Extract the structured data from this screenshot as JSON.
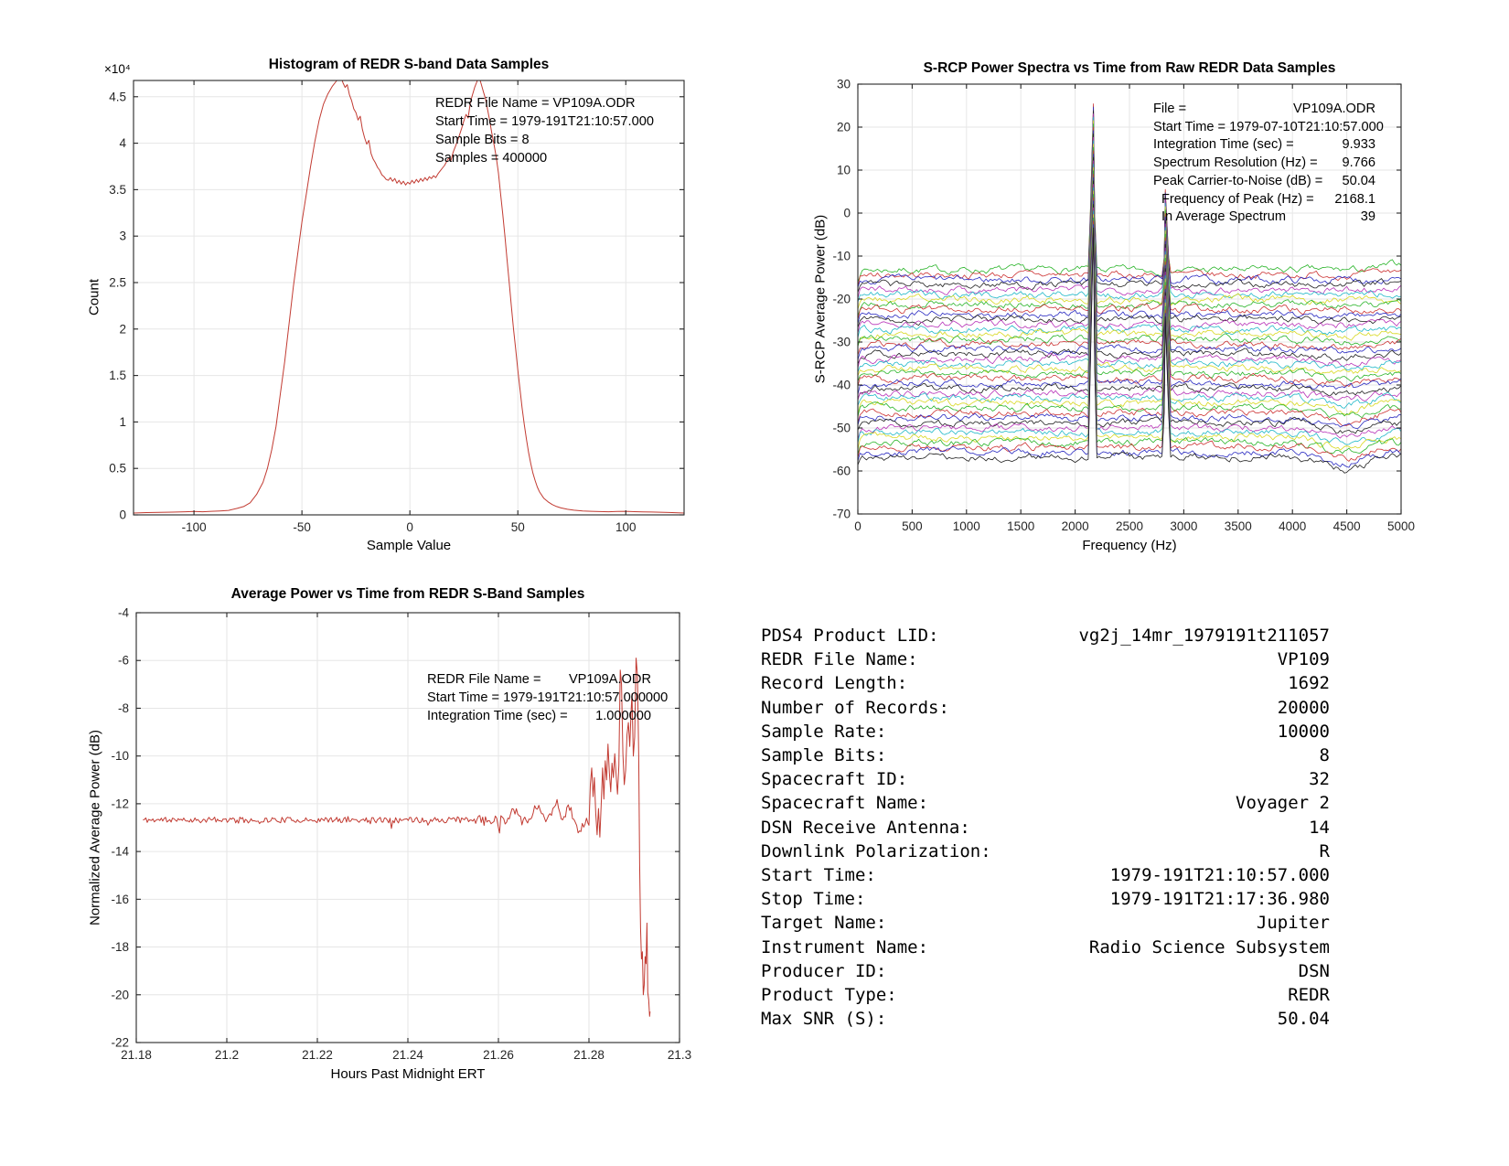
{
  "colors": {
    "background": "#ffffff",
    "red_line": "#c23b32",
    "grid": "#e6e6e6",
    "axis": "#262626",
    "tick_text": "#262626",
    "trace_cycle": [
      "#28b428",
      "#cc3232",
      "#2828c0",
      "#1e1e1e",
      "#b832b8",
      "#20b8c8",
      "#d8d820"
    ]
  },
  "chart_data": [
    {
      "id": "histogram",
      "type": "line",
      "title": "Histogram of REDR S-band Data Samples",
      "xlabel": "Sample Value",
      "ylabel": "Count",
      "exp_label": "×10⁴",
      "xlim": [
        -128,
        127
      ],
      "ylim": [
        0,
        46750
      ],
      "grid": true,
      "xticks": {
        "values": [
          -100,
          -50,
          0,
          50,
          100
        ],
        "labels": [
          "-100",
          "-50",
          "0",
          "50",
          "100"
        ]
      },
      "yticks": {
        "values": [
          0,
          5000,
          10000,
          15000,
          20000,
          25000,
          30000,
          35000,
          40000,
          45000
        ],
        "labels": [
          "0",
          "0.5",
          "1",
          "1.5",
          "2",
          "2.5",
          "3",
          "3.5",
          "4",
          "4.5"
        ]
      },
      "annotations": [
        "REDR File Name = VP109A.ODR",
        "Start Time = 1979-191T21:10:57.000",
        "Sample Bits = 8",
        "Samples = 400000"
      ],
      "points": [
        [
          -128,
          200
        ],
        [
          -122,
          250
        ],
        [
          -116,
          280
        ],
        [
          -110,
          300
        ],
        [
          -104,
          330
        ],
        [
          -100,
          360
        ],
        [
          -96,
          330
        ],
        [
          -92,
          380
        ],
        [
          -88,
          420
        ],
        [
          -84,
          480
        ],
        [
          -80,
          700
        ],
        [
          -77,
          900
        ],
        [
          -74,
          1300
        ],
        [
          -71,
          2200
        ],
        [
          -68,
          3500
        ],
        [
          -66,
          5000
        ],
        [
          -64,
          7000
        ],
        [
          -62,
          9500
        ],
        [
          -60,
          13000
        ],
        [
          -58,
          16500
        ],
        [
          -56,
          20500
        ],
        [
          -54,
          24500
        ],
        [
          -52,
          28000
        ],
        [
          -50,
          31500
        ],
        [
          -48,
          34500
        ],
        [
          -46,
          37500
        ],
        [
          -44,
          40200
        ],
        [
          -42,
          42500
        ],
        [
          -40,
          44200
        ],
        [
          -38,
          45300
        ],
        [
          -36,
          46100
        ],
        [
          -34,
          46700
        ],
        [
          -32,
          47200
        ],
        [
          -31,
          46500
        ],
        [
          -30,
          46000
        ],
        [
          -29,
          46300
        ],
        [
          -28,
          45200
        ],
        [
          -27,
          44600
        ],
        [
          -26,
          43700
        ],
        [
          -25,
          43300
        ],
        [
          -24,
          42500
        ],
        [
          -23,
          42900
        ],
        [
          -22,
          41500
        ],
        [
          -21,
          40600
        ],
        [
          -20,
          39900
        ],
        [
          -19,
          40300
        ],
        [
          -18,
          38900
        ],
        [
          -17,
          38300
        ],
        [
          -16,
          37900
        ],
        [
          -15,
          37400
        ],
        [
          -14,
          37100
        ],
        [
          -13,
          36600
        ],
        [
          -12,
          36400
        ],
        [
          -11,
          36100
        ],
        [
          -10,
          36000
        ],
        [
          -9,
          36300
        ],
        [
          -8,
          35900
        ],
        [
          -7,
          36200
        ],
        [
          -6,
          35700
        ],
        [
          -5,
          36000
        ],
        [
          -4,
          35600
        ],
        [
          -3,
          35900
        ],
        [
          -2,
          35500
        ],
        [
          -1,
          35800
        ],
        [
          0,
          35600
        ],
        [
          1,
          36000
        ],
        [
          2,
          35700
        ],
        [
          3,
          36100
        ],
        [
          4,
          35800
        ],
        [
          5,
          36200
        ],
        [
          6,
          35900
        ],
        [
          7,
          36300
        ],
        [
          8,
          36000
        ],
        [
          9,
          36400
        ],
        [
          10,
          36200
        ],
        [
          11,
          36500
        ],
        [
          12,
          36300
        ],
        [
          13,
          36700
        ],
        [
          14,
          37000
        ],
        [
          15,
          37300
        ],
        [
          16,
          37600
        ],
        [
          17,
          38000
        ],
        [
          18,
          38400
        ],
        [
          19,
          38100
        ],
        [
          20,
          39000
        ],
        [
          21,
          39600
        ],
        [
          22,
          40200
        ],
        [
          23,
          40900
        ],
        [
          24,
          41600
        ],
        [
          25,
          42400
        ],
        [
          26,
          43100
        ],
        [
          27,
          42700
        ],
        [
          28,
          44400
        ],
        [
          29,
          45200
        ],
        [
          30,
          46000
        ],
        [
          31,
          46600
        ],
        [
          32,
          47200
        ],
        [
          33,
          46400
        ],
        [
          34,
          45600
        ],
        [
          35,
          44800
        ],
        [
          36,
          43600
        ],
        [
          37,
          42400
        ],
        [
          38,
          41000
        ],
        [
          39,
          39800
        ],
        [
          40,
          38500
        ],
        [
          41,
          36800
        ],
        [
          42,
          34600
        ],
        [
          43,
          32400
        ],
        [
          44,
          30000
        ],
        [
          45,
          27500
        ],
        [
          46,
          25000
        ],
        [
          47,
          22500
        ],
        [
          48,
          20000
        ],
        [
          49,
          17800
        ],
        [
          50,
          15600
        ],
        [
          51,
          13500
        ],
        [
          52,
          11500
        ],
        [
          53,
          9700
        ],
        [
          54,
          8100
        ],
        [
          55,
          6700
        ],
        [
          56,
          5500
        ],
        [
          57,
          4500
        ],
        [
          58,
          3700
        ],
        [
          59,
          3000
        ],
        [
          60,
          2500
        ],
        [
          62,
          1800
        ],
        [
          64,
          1400
        ],
        [
          66,
          1100
        ],
        [
          68,
          900
        ],
        [
          70,
          750
        ],
        [
          73,
          600
        ],
        [
          76,
          500
        ],
        [
          80,
          420
        ],
        [
          84,
          380
        ],
        [
          88,
          350
        ],
        [
          92,
          330
        ],
        [
          96,
          360
        ],
        [
          100,
          380
        ],
        [
          104,
          340
        ],
        [
          108,
          320
        ],
        [
          112,
          310
        ],
        [
          116,
          290
        ],
        [
          120,
          260
        ],
        [
          127,
          200
        ]
      ]
    },
    {
      "id": "spectra",
      "type": "line",
      "title": "S-RCP Power Spectra vs Time from Raw REDR Data Samples",
      "xlabel": "Frequency (Hz)",
      "ylabel": "S-RCP Average Power (dB)",
      "xlim": [
        0,
        5000
      ],
      "ylim": [
        -70,
        30
      ],
      "grid": true,
      "xticks": {
        "values": [
          0,
          500,
          1000,
          1500,
          2000,
          2500,
          3000,
          3500,
          4000,
          4500,
          5000
        ],
        "labels": [
          "0",
          "500",
          "1000",
          "1500",
          "2000",
          "2500",
          "3000",
          "3500",
          "4000",
          "4500",
          "5000"
        ]
      },
      "yticks": {
        "values": [
          30,
          20,
          10,
          0,
          -10,
          -20,
          -30,
          -40,
          -50,
          -60,
          -70
        ],
        "labels": [
          "30",
          "20",
          "10",
          "0",
          "-10",
          "-20",
          "-30",
          "-40",
          "-50",
          "-60",
          "-70"
        ]
      },
      "annotations": [
        {
          "label": "File =",
          "value": "VP109A.ODR"
        },
        {
          "label": "Start Time = 1979-07-10T21:10:57.000",
          "value": ""
        },
        {
          "label": "Integration Time (sec) =",
          "value": "9.933"
        },
        {
          "label": "Spectrum Resolution (Hz) =",
          "value": "9.766"
        },
        {
          "label": "Peak Carrier-to-Noise (dB) =",
          "value": "50.04"
        },
        {
          "label": "Frequency of Peak (Hz) =",
          "value": "2168.1",
          "indent": true
        },
        {
          "label": "In Average Spectrum",
          "value": "39",
          "indent": true
        }
      ],
      "traces": {
        "count": 39,
        "base_start": -13.2,
        "base_step": -1.147,
        "noise_amp": 1.25,
        "peaks": [
          {
            "freq": 2168.1,
            "top": 26.2,
            "step_per_trace": 0.78
          },
          {
            "freq": 2830,
            "top": 6.3,
            "step_per_trace": 0.8
          }
        ],
        "dip": {
          "center": 4480,
          "sigma": 260,
          "max_depth": 2.8
        }
      }
    },
    {
      "id": "avg_power",
      "type": "line",
      "title": "Average Power vs Time from REDR S-Band Samples",
      "xlabel": "Hours Past Midnight ERT",
      "ylabel": "Normalized Average Power (dB)",
      "xlim": [
        21.18,
        21.3
      ],
      "ylim": [
        -22,
        -4
      ],
      "grid": true,
      "xticks": {
        "values": [
          21.18,
          21.2,
          21.22,
          21.24,
          21.26,
          21.28,
          21.3
        ],
        "labels": [
          "21.18",
          "21.2",
          "21.22",
          "21.24",
          "21.26",
          "21.28",
          "21.3"
        ]
      },
      "yticks": {
        "values": [
          -4,
          -6,
          -8,
          -10,
          -12,
          -14,
          -16,
          -18,
          -20,
          -22
        ],
        "labels": [
          "-4",
          "-6",
          "-8",
          "-10",
          "-12",
          "-14",
          "-16",
          "-18",
          "-20",
          "-22"
        ]
      },
      "annotations": [
        {
          "label": "REDR File Name =",
          "value": "VP109A.ODR"
        },
        {
          "label": "Start Time = 1979-191T21:10:57.000000",
          "value": ""
        },
        {
          "label": "Integration Time (sec) =",
          "value": "1.000000"
        }
      ],
      "flat": {
        "t_start": 21.1815,
        "t_end": 21.2798,
        "level": -12.68,
        "noise": 0.24
      },
      "tail": [
        [
          21.28,
          -12.9
        ],
        [
          21.2803,
          -11.2
        ],
        [
          21.2806,
          -10.5
        ],
        [
          21.2809,
          -11.7
        ],
        [
          21.2812,
          -10.9
        ],
        [
          21.2815,
          -12.4
        ],
        [
          21.2818,
          -13.3
        ],
        [
          21.2821,
          -12.2
        ],
        [
          21.2824,
          -13.4
        ],
        [
          21.2827,
          -12.0
        ],
        [
          21.283,
          -10.5
        ],
        [
          21.2833,
          -11.8
        ],
        [
          21.2836,
          -10.2
        ],
        [
          21.2839,
          -11.0
        ],
        [
          21.2842,
          -9.5
        ],
        [
          21.2845,
          -10.7
        ],
        [
          21.2848,
          -11.5
        ],
        [
          21.2851,
          -10.3
        ],
        [
          21.2854,
          -10.9
        ],
        [
          21.2857,
          -9.9
        ],
        [
          21.286,
          -10.8
        ],
        [
          21.2863,
          -11.6
        ],
        [
          21.2866,
          -10.4
        ],
        [
          21.2869,
          -6.4
        ],
        [
          21.2872,
          -7.0
        ],
        [
          21.2875,
          -9.9
        ],
        [
          21.2878,
          -11.2
        ],
        [
          21.2881,
          -10.6
        ],
        [
          21.2884,
          -9.1
        ],
        [
          21.2887,
          -8.6
        ],
        [
          21.289,
          -9.6
        ],
        [
          21.2893,
          -8.2
        ],
        [
          21.2895,
          -7.4
        ],
        [
          21.2898,
          -10.0
        ],
        [
          21.2901,
          -9.2
        ],
        [
          21.2904,
          -5.9
        ],
        [
          21.2907,
          -6.6
        ],
        [
          21.291,
          -10.0
        ],
        [
          21.2912,
          -14.5
        ],
        [
          21.2914,
          -17.2
        ],
        [
          21.2916,
          -18.5
        ],
        [
          21.2918,
          -18.2
        ],
        [
          21.292,
          -20.0
        ],
        [
          21.2922,
          -19.6
        ],
        [
          21.2924,
          -18.4
        ],
        [
          21.2926,
          -18.7
        ],
        [
          21.2928,
          -17.0
        ],
        [
          21.293,
          -19.9
        ],
        [
          21.2932,
          -20.2
        ],
        [
          21.2934,
          -20.9
        ],
        [
          21.2935,
          -20.7
        ]
      ]
    }
  ],
  "info_table": {
    "rows": [
      {
        "label": "PDS4 Product LID:",
        "value": "vg2j_14mr_1979191t211057"
      },
      {
        "label": "REDR File Name:",
        "value": "VP109"
      },
      {
        "label": "Record Length:",
        "value": "1692"
      },
      {
        "label": "Number of Records:",
        "value": "20000"
      },
      {
        "label": "Sample Rate:",
        "value": "10000"
      },
      {
        "label": "Sample Bits:",
        "value": "8"
      },
      {
        "label": "Spacecraft ID:",
        "value": "32"
      },
      {
        "label": "Spacecraft Name:",
        "value": "Voyager 2"
      },
      {
        "label": "DSN Receive Antenna:",
        "value": "14"
      },
      {
        "label": "Downlink Polarization:",
        "value": "R"
      },
      {
        "label": "Start Time:",
        "value": "1979-191T21:10:57.000"
      },
      {
        "label": "Stop Time:",
        "value": "1979-191T21:17:36.980"
      },
      {
        "label": "Target Name:",
        "value": "Jupiter"
      },
      {
        "label": "Instrument Name:",
        "value": "Radio Science Subsystem"
      },
      {
        "label": "Producer ID:",
        "value": "DSN"
      },
      {
        "label": "Product Type:",
        "value": "REDR"
      },
      {
        "label": "Max SNR (S):",
        "value": "50.04"
      }
    ]
  }
}
